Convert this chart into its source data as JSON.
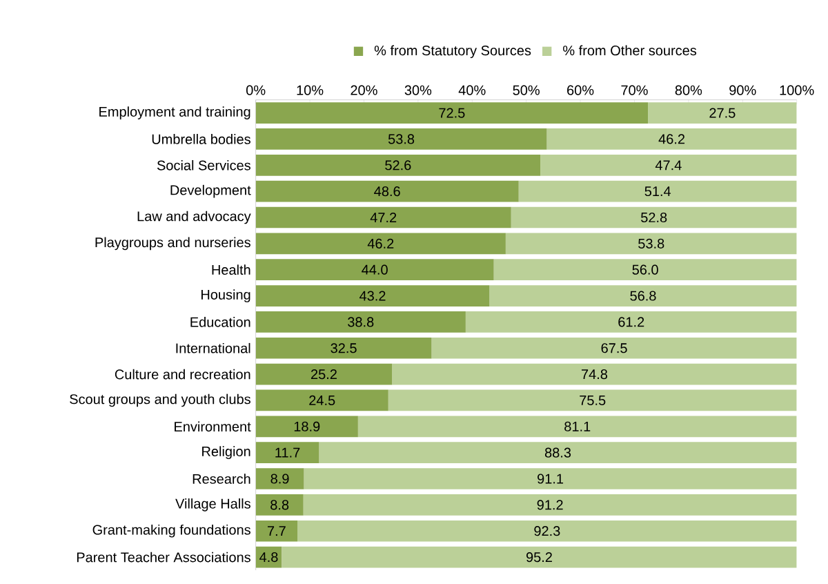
{
  "chart_data": {
    "type": "bar",
    "orientation": "horizontal",
    "stacked": true,
    "legend": "top",
    "categories": [
      "Employment and training",
      "Umbrella bodies",
      "Social Services",
      "Development",
      "Law and advocacy",
      "Playgroups and nurseries",
      "Health",
      "Housing",
      "Education",
      "International",
      "Culture and recreation",
      "Scout groups and youth clubs",
      "Environment",
      "Religion",
      "Research",
      "Village Halls",
      "Grant-making foundations",
      "Parent Teacher Associations"
    ],
    "series": [
      {
        "name": "% from Statutory Sources",
        "color": "#8aa64f",
        "values": [
          72.5,
          53.8,
          52.6,
          48.6,
          47.2,
          46.2,
          44.0,
          43.2,
          38.8,
          32.5,
          25.2,
          24.5,
          18.9,
          11.7,
          8.9,
          8.8,
          7.7,
          4.8
        ],
        "value_labels": [
          "72.5",
          "53.8",
          "52.6",
          "48.6",
          "47.2",
          "46.2",
          "44.0",
          "43.2",
          "38.8",
          "32.5",
          "25.2",
          "24.5",
          "18.9",
          "11.7",
          "8.9",
          "8.8",
          "7.7",
          "4.8"
        ]
      },
      {
        "name": "% from Other sources",
        "color": "#bbd098",
        "values": [
          27.5,
          46.2,
          47.4,
          51.4,
          52.8,
          53.8,
          56.0,
          56.8,
          61.2,
          67.5,
          74.8,
          75.5,
          81.1,
          88.3,
          91.1,
          91.2,
          92.3,
          95.2
        ],
        "value_labels": [
          "27.5",
          "46.2",
          "47.4",
          "51.4",
          "52.8",
          "53.8",
          "56.0",
          "56.8",
          "61.2",
          "67.5",
          "74.8",
          "75.5",
          "81.1",
          "88.3",
          "91.1",
          "91.2",
          "92.3",
          "95.2"
        ]
      }
    ],
    "xlim": [
      0,
      100
    ],
    "xticks": [
      {
        "value": 0,
        "label": "0%"
      },
      {
        "value": 10,
        "label": "10%"
      },
      {
        "value": 20,
        "label": "20%"
      },
      {
        "value": 30,
        "label": "30%"
      },
      {
        "value": 40,
        "label": "40%"
      },
      {
        "value": 50,
        "label": "50%"
      },
      {
        "value": 60,
        "label": "60%"
      },
      {
        "value": 70,
        "label": "70%"
      },
      {
        "value": 80,
        "label": "80%"
      },
      {
        "value": 90,
        "label": "90%"
      },
      {
        "value": 100,
        "label": "100%"
      }
    ]
  }
}
